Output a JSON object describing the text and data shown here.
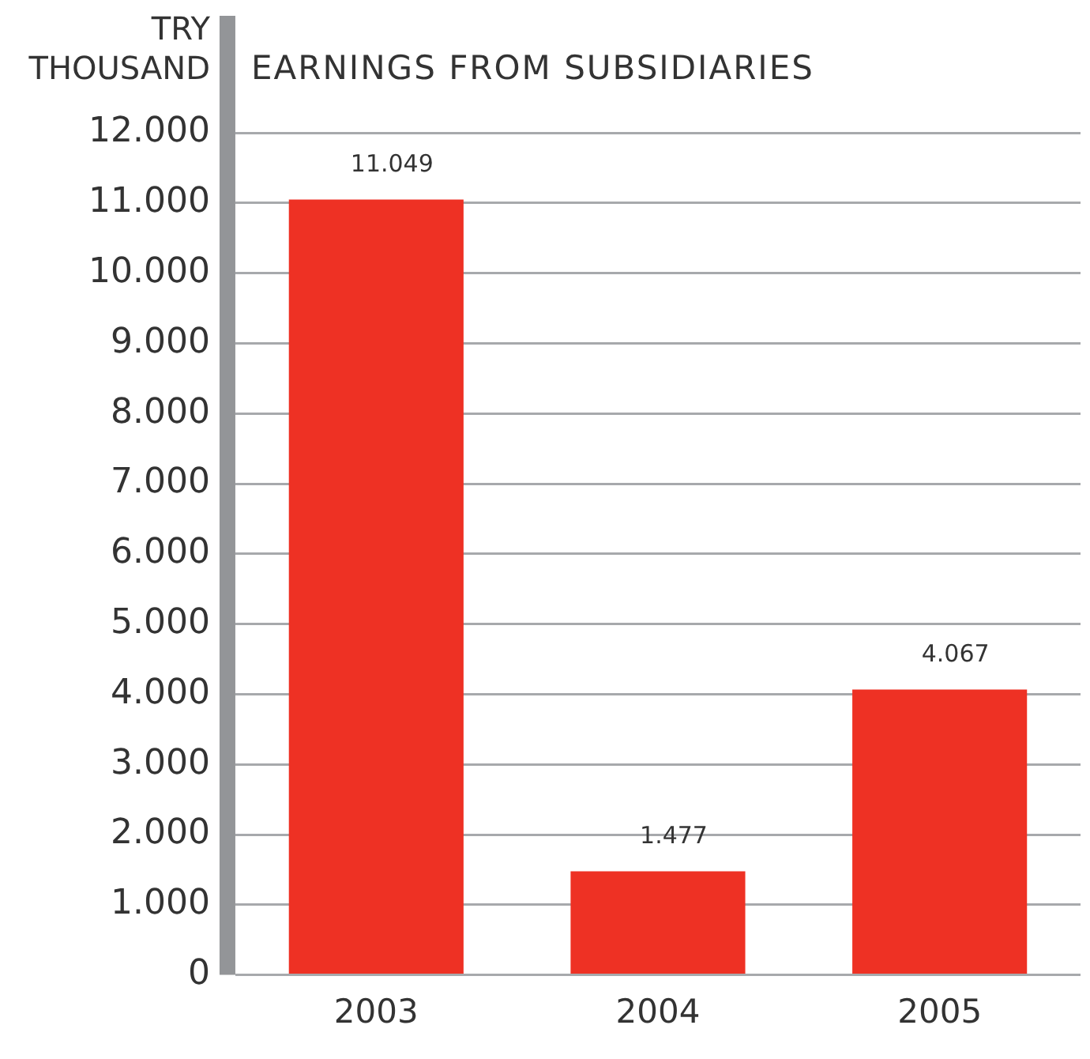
{
  "chart_data": {
    "type": "bar",
    "title": "EARNINGS FROM SUBSIDIARIES",
    "ylabel": "TRY\nTHOUSAND",
    "categories": [
      "2003",
      "2004",
      "2005"
    ],
    "values": [
      11049,
      1477,
      4067
    ],
    "color": "#ee3124",
    "value_labels": [
      "11.049",
      "1.477",
      "4.067"
    ],
    "ylim": [
      0,
      12000
    ],
    "yticks": [
      0,
      {
        "value": 1000,
        "label": "1.000"
      },
      {
        "value": 2000,
        "label": "2.000"
      },
      {
        "value": 3000,
        "label": "3.000"
      },
      {
        "value": 4000,
        "label": "4.000"
      },
      {
        "value": 5000,
        "label": "5.000"
      },
      {
        "value": 6000,
        "label": "6.000"
      },
      {
        "value": 7000,
        "label": "7.000"
      },
      {
        "value": 8000,
        "label": "8.000"
      },
      {
        "value": 9000,
        "label": "9.000"
      },
      {
        "value": 10000,
        "label": "10.000"
      },
      {
        "value": 11000,
        "label": "11.000"
      },
      {
        "value": 12000,
        "label": "12.000"
      }
    ],
    "grid": "y"
  }
}
